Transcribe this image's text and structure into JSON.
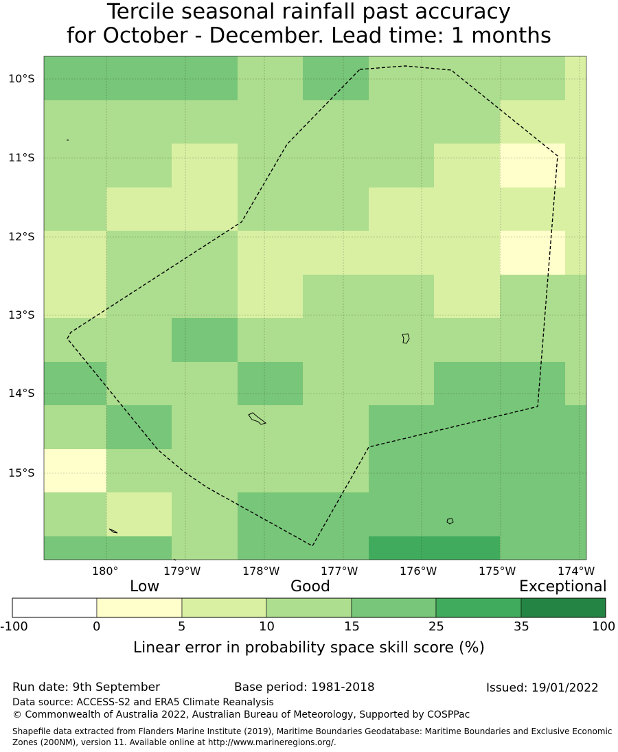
{
  "title": {
    "line1": "Tercile seasonal rainfall past accuracy",
    "line2": "for October - December. Lead time: 1 months"
  },
  "map": {
    "lat_labels": [
      "10°S",
      "11°S",
      "12°S",
      "13°S",
      "14°S",
      "15°S"
    ],
    "lon_labels": [
      "180°",
      "179°W",
      "178°W",
      "177°W",
      "176°W",
      "175°W",
      "174°W"
    ],
    "colors": {
      "c0": "#ffffff",
      "c1": "#ffffcc",
      "c2": "#d9f0a3",
      "c3": "#addd8e",
      "c4": "#78c679",
      "c5": "#41ab5d",
      "c6": "#238443"
    },
    "skill_grid": [
      [
        4,
        4,
        4,
        3,
        4,
        3,
        3,
        3,
        2
      ],
      [
        3,
        3,
        3,
        3,
        3,
        3,
        3,
        2,
        2
      ],
      [
        3,
        3,
        2,
        3,
        3,
        3,
        2,
        1,
        2
      ],
      [
        3,
        2,
        2,
        3,
        3,
        2,
        2,
        2,
        2
      ],
      [
        2,
        3,
        3,
        2,
        2,
        2,
        2,
        1,
        2
      ],
      [
        2,
        3,
        3,
        2,
        3,
        3,
        2,
        3,
        3
      ],
      [
        3,
        3,
        4,
        3,
        3,
        3,
        3,
        3,
        3
      ],
      [
        4,
        3,
        3,
        4,
        3,
        3,
        4,
        4,
        3
      ],
      [
        3,
        4,
        3,
        3,
        3,
        4,
        4,
        4,
        4
      ],
      [
        1,
        3,
        3,
        3,
        3,
        4,
        4,
        4,
        4
      ],
      [
        3,
        2,
        3,
        4,
        4,
        4,
        4,
        4,
        4
      ],
      [
        4,
        4,
        3,
        4,
        4,
        5,
        5,
        4,
        4
      ]
    ]
  },
  "colorbar": {
    "categories": [
      "Low",
      "Good",
      "Exceptional"
    ],
    "ticks": [
      "-100",
      "0",
      "5",
      "10",
      "15",
      "25",
      "35",
      "100"
    ],
    "label": "Linear error in probability space skill score (%)"
  },
  "footer": {
    "run_date": "Run date: 9th September",
    "base_period": "Base period: 1981-2018",
    "issued": "Issued: 19/01/2022",
    "data_source": "Data source: ACCESS-S2 and ERA5 Climate Reanalysis",
    "copyright": "© Commonwealth of Australia 2022, Australian Bureau of Meteorology, Supported by COSPPac",
    "shapefile": "Shapefile data extracted from Flanders Marine Institute (2019), Maritime Boundaries Geodatabase: Maritime Boundaries and Exclusive Economic Zones (200NM), version 11. Available online at http://www.marineregions.org/."
  }
}
